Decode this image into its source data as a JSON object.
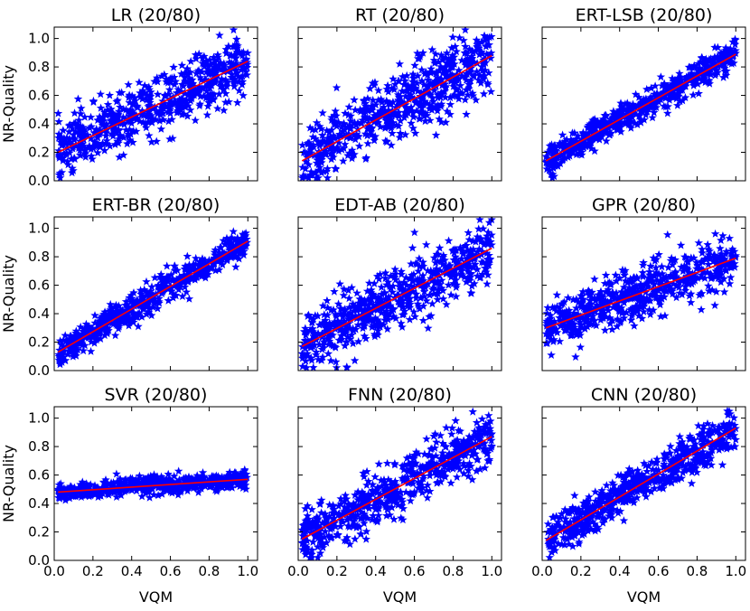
{
  "figure": {
    "ylabel": "NR-Quality",
    "xlabel": "VQM"
  },
  "colors": {
    "points": "#0000ff",
    "fit_line": "#ff0000"
  },
  "chart_data": [
    {
      "type": "scatter",
      "title": "LR (20/80)",
      "xlim": [
        0,
        1.05
      ],
      "ylim": [
        0,
        1.08
      ],
      "fit": {
        "x": [
          0.02,
          1.0
        ],
        "y": [
          0.2,
          0.84
        ]
      },
      "cloud": {
        "x_range": [
          0.02,
          1.0
        ],
        "spread": 0.1,
        "n": 600
      }
    },
    {
      "type": "scatter",
      "title": "RT (20/80)",
      "xlim": [
        0,
        1.05
      ],
      "ylim": [
        0,
        1.08
      ],
      "fit": {
        "x": [
          0.02,
          1.0
        ],
        "y": [
          0.14,
          0.88
        ]
      },
      "cloud": {
        "x_range": [
          0.02,
          1.0
        ],
        "spread": 0.12,
        "n": 600
      }
    },
    {
      "type": "scatter",
      "title": "ERT-LSB (20/80)",
      "xlim": [
        0,
        1.05
      ],
      "ylim": [
        0,
        1.08
      ],
      "fit": {
        "x": [
          0.02,
          1.0
        ],
        "y": [
          0.14,
          0.89
        ]
      },
      "cloud": {
        "x_range": [
          0.02,
          1.0
        ],
        "spread": 0.05,
        "n": 600
      }
    },
    {
      "type": "scatter",
      "title": "ERT-BR (20/80)",
      "xlim": [
        0,
        1.05
      ],
      "ylim": [
        0,
        1.08
      ],
      "fit": {
        "x": [
          0.02,
          1.0
        ],
        "y": [
          0.13,
          0.91
        ]
      },
      "cloud": {
        "x_range": [
          0.02,
          1.0
        ],
        "spread": 0.05,
        "n": 600
      }
    },
    {
      "type": "scatter",
      "title": "EDT-AB (20/80)",
      "xlim": [
        0,
        1.05
      ],
      "ylim": [
        0,
        1.08
      ],
      "fit": {
        "x": [
          0.02,
          1.0
        ],
        "y": [
          0.17,
          0.86
        ]
      },
      "cloud": {
        "x_range": [
          0.02,
          1.0
        ],
        "spread": 0.11,
        "n": 600
      }
    },
    {
      "type": "scatter",
      "title": "GPR (20/80)",
      "xlim": [
        0,
        1.05
      ],
      "ylim": [
        0,
        1.08
      ],
      "fit": {
        "x": [
          0.02,
          1.0
        ],
        "y": [
          0.3,
          0.79
        ]
      },
      "cloud": {
        "x_range": [
          0.02,
          1.0
        ],
        "spread": 0.09,
        "n": 600
      }
    },
    {
      "type": "scatter",
      "title": "SVR (20/80)",
      "xlim": [
        0,
        1.05
      ],
      "ylim": [
        0,
        1.08
      ],
      "fit": {
        "x": [
          0.02,
          1.0
        ],
        "y": [
          0.48,
          0.57
        ]
      },
      "cloud": {
        "x_range": [
          0.02,
          1.0
        ],
        "spread": 0.03,
        "n": 600
      }
    },
    {
      "type": "scatter",
      "title": "FNN (20/80)",
      "xlim": [
        0,
        1.05
      ],
      "ylim": [
        0,
        1.08
      ],
      "fit": {
        "x": [
          0.02,
          1.0
        ],
        "y": [
          0.15,
          0.87
        ]
      },
      "cloud": {
        "x_range": [
          0.02,
          1.0
        ],
        "spread": 0.09,
        "n": 600
      }
    },
    {
      "type": "scatter",
      "title": "CNN (20/80)",
      "xlim": [
        0,
        1.05
      ],
      "ylim": [
        0,
        1.08
      ],
      "fit": {
        "x": [
          0.02,
          1.0
        ],
        "y": [
          0.14,
          0.93
        ]
      },
      "cloud": {
        "x_range": [
          0.02,
          1.0
        ],
        "spread": 0.07,
        "n": 600
      }
    }
  ],
  "axes": {
    "y_ticks": [
      "0.0",
      "0.2",
      "0.4",
      "0.6",
      "0.8",
      "1.0"
    ],
    "x_ticks": [
      "0.0",
      "0.2",
      "0.4",
      "0.6",
      "0.8",
      "1.0"
    ]
  }
}
